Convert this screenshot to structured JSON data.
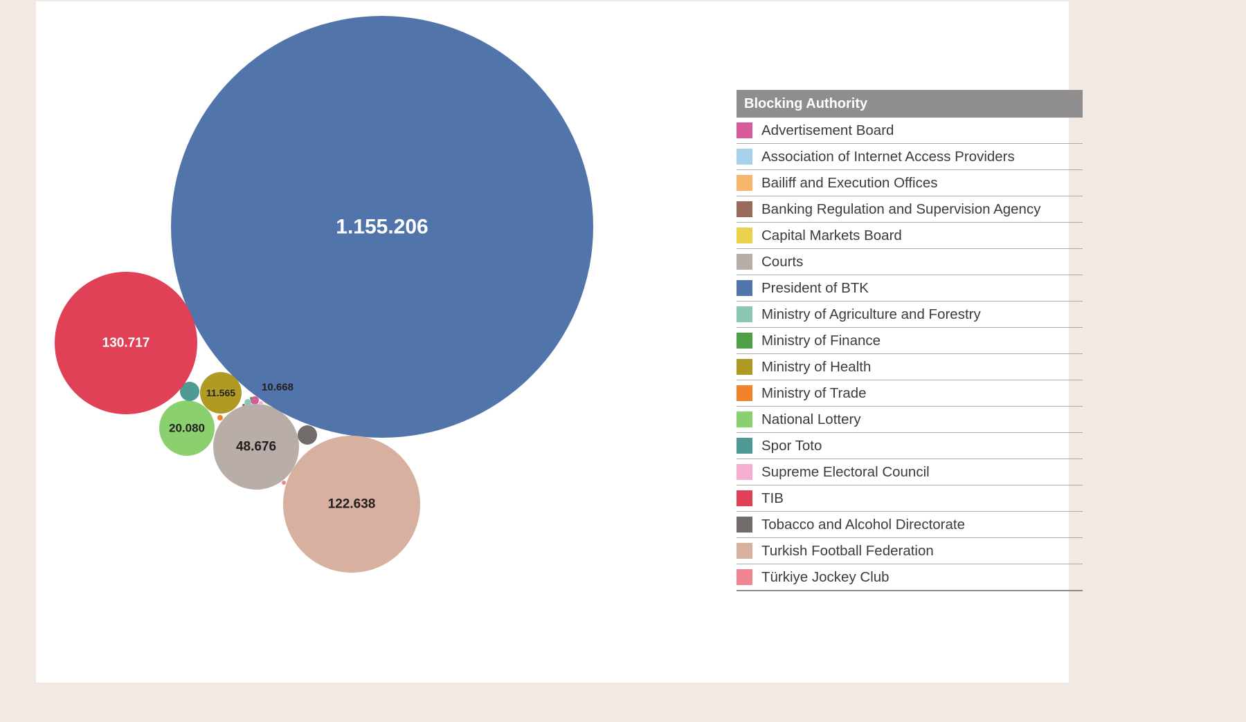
{
  "chart_data": {
    "type": "bubble",
    "legend_title": "Blocking Authority",
    "legend_position": "right",
    "series": [
      {
        "name": "Advertisement Board",
        "color": "#d65b9a",
        "value": null,
        "label": ""
      },
      {
        "name": "Association of Internet Access Providers",
        "color": "#a8d1ee",
        "value": null,
        "label": ""
      },
      {
        "name": "Bailiff and Execution Offices",
        "color": "#f8b56e",
        "value": null,
        "label": ""
      },
      {
        "name": "Banking Regulation and Supervision Agency",
        "color": "#9a6b5b",
        "value": null,
        "label": ""
      },
      {
        "name": "Capital Markets Board",
        "color": "#ecd14f",
        "value": 10668,
        "label": "10.668"
      },
      {
        "name": "Courts",
        "color": "#b9ada8",
        "value": 48676,
        "label": "48.676"
      },
      {
        "name": "President of BTK",
        "color": "#5174ab",
        "value": 1155206,
        "label": "1.155.206"
      },
      {
        "name": "Ministry of Agriculture and Forestry",
        "color": "#8bc5b3",
        "value": null,
        "label": ""
      },
      {
        "name": "Ministry of Finance",
        "color": "#4f9f45",
        "value": null,
        "label": ""
      },
      {
        "name": "Ministry of Health",
        "color": "#b09a23",
        "value": 11565,
        "label": "11.565"
      },
      {
        "name": "Ministry of Trade",
        "color": "#f0822a",
        "value": null,
        "label": ""
      },
      {
        "name": "National Lottery",
        "color": "#8bd06e",
        "value": 20080,
        "label": "20.080"
      },
      {
        "name": "Spor Toto",
        "color": "#4f9a92",
        "value": null,
        "label": ""
      },
      {
        "name": "Supreme Electoral Council",
        "color": "#f3aed1",
        "value": null,
        "label": ""
      },
      {
        "name": "TIB",
        "color": "#e04156",
        "value": 130717,
        "label": "130.717"
      },
      {
        "name": "Tobacco and Alcohol Directorate",
        "color": "#716b69",
        "value": null,
        "label": ""
      },
      {
        "name": "Turkish Football Federation",
        "color": "#d7b0a0",
        "value": 122638,
        "label": "122.638"
      },
      {
        "name": "Türkiye Jockey Club",
        "color": "#f08592",
        "value": null,
        "label": ""
      }
    ]
  }
}
